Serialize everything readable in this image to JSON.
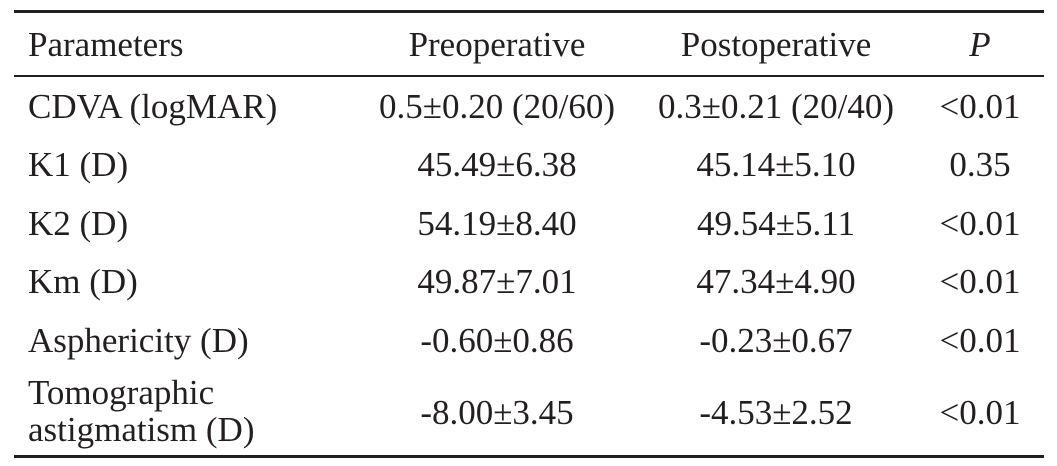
{
  "table": {
    "headers": {
      "parameters": "Parameters",
      "preoperative": "Preoperative",
      "postoperative": "Postoperative",
      "p": "P"
    },
    "rows": [
      {
        "parameter": "CDVA (logMAR)",
        "pre": "0.5±0.20 (20/60)",
        "post": "0.3±0.21 (20/40)",
        "p": "<0.01"
      },
      {
        "parameter": "K1 (D)",
        "pre": "45.49±6.38",
        "post": "45.14±5.10",
        "p": "0.35"
      },
      {
        "parameter": "K2 (D)",
        "pre": "54.19±8.40",
        "post": "49.54±5.11",
        "p": "<0.01"
      },
      {
        "parameter": "Km (D)",
        "pre": "49.87±7.01",
        "post": "47.34±4.90",
        "p": "<0.01"
      },
      {
        "parameter": "Asphericity (D)",
        "pre": "-0.60±0.86",
        "post": "-0.23±0.67",
        "p": "<0.01"
      },
      {
        "parameter_line1": "Tomographic",
        "parameter_line2": "astigmatism (D)",
        "pre": "-8.00±3.45",
        "post": "-4.53±2.52",
        "p": "<0.01"
      }
    ]
  }
}
